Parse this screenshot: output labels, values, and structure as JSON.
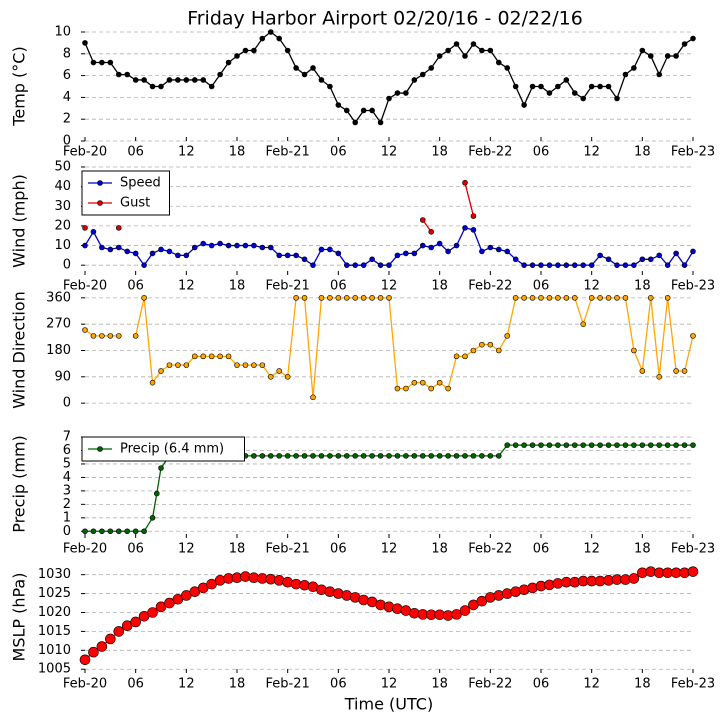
{
  "title": "Friday Harbor Airport 02/20/16 - 02/22/16",
  "chart_data": [
    {
      "type": "line",
      "ylabel": "Temp (°C)",
      "xlim": [
        0,
        72
      ],
      "ylim": [
        0,
        10
      ],
      "yticks": [
        0,
        2,
        4,
        6,
        8,
        10
      ],
      "xticks": [
        {
          "value": 0,
          "label": "Feb-20"
        },
        {
          "value": 6,
          "label": "06"
        },
        {
          "value": 12,
          "label": "12"
        },
        {
          "value": 18,
          "label": "18"
        },
        {
          "value": 24,
          "label": "Feb-21"
        },
        {
          "value": 30,
          "label": "06"
        },
        {
          "value": 36,
          "label": "12"
        },
        {
          "value": 42,
          "label": "18"
        },
        {
          "value": 48,
          "label": "Feb-22"
        },
        {
          "value": 54,
          "label": "06"
        },
        {
          "value": 60,
          "label": "12"
        },
        {
          "value": 66,
          "label": "18"
        },
        {
          "value": 72,
          "label": "Feb-23"
        }
      ],
      "grid": true,
      "x": [
        0,
        1,
        2,
        3,
        4,
        5,
        6,
        7,
        8,
        9,
        10,
        11,
        12,
        13,
        14,
        15,
        16,
        17,
        18,
        19,
        20,
        21,
        22,
        23,
        24,
        25,
        26,
        27,
        28,
        29,
        30,
        31,
        32,
        33,
        34,
        35,
        36,
        37,
        38,
        39,
        40,
        41,
        42,
        43,
        44,
        45,
        46,
        47,
        48,
        49,
        50,
        51,
        52,
        53,
        54,
        55,
        56,
        57,
        58,
        59,
        60,
        61,
        62,
        63,
        64,
        65,
        66,
        67,
        68,
        69,
        70,
        71,
        72
      ],
      "series": [
        {
          "name": "Temp",
          "color": "#000000",
          "values": [
            9,
            7.2,
            7.2,
            7.2,
            6.1,
            6.1,
            5.6,
            5.6,
            5,
            5,
            5.6,
            5.6,
            5.6,
            5.6,
            5.6,
            5,
            6.1,
            7.2,
            7.8,
            8.3,
            8.3,
            9.4,
            10,
            9.4,
            8.3,
            6.7,
            6.1,
            6.7,
            5.6,
            5,
            3.3,
            2.8,
            1.7,
            2.8,
            2.8,
            1.7,
            3.9,
            4.4,
            4.4,
            5.6,
            6.1,
            6.7,
            7.8,
            8.3,
            8.9,
            7.8,
            8.9,
            8.3,
            8.3,
            7.2,
            6.7,
            5,
            3.3,
            5,
            5,
            4.4,
            5,
            5.6,
            4.4,
            3.9,
            5,
            5,
            5,
            3.9,
            6.1,
            6.7,
            8.3,
            7.8,
            6.1,
            7.8,
            7.8,
            8.9,
            9.4
          ]
        }
      ]
    },
    {
      "type": "line",
      "ylabel": "Wind (mph)",
      "xlim": [
        0,
        72
      ],
      "ylim": [
        -5,
        50
      ],
      "yticks": [
        0,
        10,
        20,
        30,
        40,
        50
      ],
      "xticks": [
        {
          "value": 0,
          "label": "Feb-20"
        },
        {
          "value": 6,
          "label": "06"
        },
        {
          "value": 12,
          "label": "12"
        },
        {
          "value": 18,
          "label": "18"
        },
        {
          "value": 24,
          "label": "Feb-21"
        },
        {
          "value": 30,
          "label": "06"
        },
        {
          "value": 36,
          "label": "12"
        },
        {
          "value": 42,
          "label": "18"
        },
        {
          "value": 48,
          "label": "Feb-22"
        },
        {
          "value": 54,
          "label": "06"
        },
        {
          "value": 60,
          "label": "12"
        },
        {
          "value": 66,
          "label": "18"
        },
        {
          "value": 72,
          "label": "Feb-23"
        }
      ],
      "grid": true,
      "legend": "upper left",
      "x": [
        0,
        1,
        2,
        3,
        4,
        5,
        6,
        7,
        8,
        9,
        10,
        11,
        12,
        13,
        14,
        15,
        16,
        17,
        18,
        19,
        20,
        21,
        22,
        23,
        24,
        25,
        26,
        27,
        28,
        29,
        30,
        31,
        32,
        33,
        34,
        35,
        36,
        37,
        38,
        39,
        40,
        41,
        42,
        43,
        44,
        45,
        46,
        47,
        48,
        49,
        50,
        51,
        52,
        53,
        54,
        55,
        56,
        57,
        58,
        59,
        60,
        61,
        62,
        63,
        64,
        65,
        66,
        67,
        68,
        69,
        70,
        71,
        72
      ],
      "series": [
        {
          "name": "Speed",
          "color": "#0000cc",
          "values": [
            10,
            17,
            9,
            8,
            9,
            7,
            6,
            0,
            6,
            8,
            7,
            5,
            5,
            9,
            11,
            10,
            11,
            10,
            10,
            10,
            10,
            9,
            9,
            5,
            5,
            5,
            3,
            0,
            8,
            8,
            6,
            0,
            0,
            0,
            3,
            0,
            0,
            5,
            6,
            6,
            10,
            9,
            11,
            7,
            10,
            19,
            18,
            7,
            9,
            8,
            7,
            3,
            0,
            0,
            0,
            0,
            0,
            0,
            0,
            0,
            0,
            5,
            3,
            0,
            0,
            0,
            3,
            3,
            5,
            0,
            6,
            0,
            7
          ]
        },
        {
          "name": "Gust",
          "color": "#dd0000",
          "values": [
            19,
            null,
            null,
            null,
            19,
            null,
            null,
            null,
            null,
            null,
            null,
            null,
            null,
            null,
            null,
            null,
            null,
            null,
            null,
            null,
            null,
            null,
            null,
            null,
            null,
            null,
            null,
            null,
            null,
            null,
            null,
            null,
            null,
            null,
            null,
            null,
            null,
            null,
            null,
            null,
            23,
            17,
            null,
            null,
            null,
            42,
            25,
            null,
            null,
            null,
            null,
            null,
            null,
            null,
            null,
            null,
            null,
            null,
            null,
            null,
            null,
            null,
            null,
            null,
            null,
            null,
            null,
            null,
            null,
            null,
            null,
            null,
            null
          ]
        }
      ]
    },
    {
      "type": "line",
      "ylabel": "Wind Direction",
      "xlim": [
        0,
        72
      ],
      "ylim": [
        -20,
        380
      ],
      "yticks": [
        0,
        90,
        180,
        270,
        360
      ],
      "grid": true,
      "x": [
        0,
        1,
        2,
        3,
        4,
        5,
        6,
        7,
        8,
        9,
        10,
        11,
        12,
        13,
        14,
        15,
        16,
        17,
        18,
        19,
        20,
        21,
        22,
        23,
        24,
        25,
        26,
        27,
        28,
        29,
        30,
        31,
        32,
        33,
        34,
        35,
        36,
        37,
        38,
        39,
        40,
        41,
        42,
        43,
        44,
        45,
        46,
        47,
        48,
        49,
        50,
        51,
        52,
        53,
        54,
        55,
        56,
        57,
        58,
        59,
        60,
        61,
        62,
        63,
        64,
        65,
        66,
        67,
        68,
        69,
        70,
        71,
        72
      ],
      "series": [
        {
          "name": "Direction",
          "color": "#ffa500",
          "values": [
            250,
            230,
            230,
            230,
            230,
            null,
            230,
            360,
            70,
            110,
            130,
            130,
            130,
            160,
            160,
            160,
            160,
            160,
            130,
            130,
            130,
            130,
            90,
            110,
            90,
            360,
            360,
            20,
            360,
            360,
            360,
            360,
            360,
            360,
            360,
            360,
            360,
            50,
            50,
            70,
            70,
            50,
            70,
            50,
            160,
            160,
            180,
            200,
            200,
            180,
            230,
            360,
            360,
            360,
            360,
            360,
            360,
            360,
            360,
            270,
            360,
            360,
            360,
            360,
            360,
            180,
            110,
            360,
            90,
            360,
            110,
            110,
            230
          ]
        }
      ]
    },
    {
      "type": "line",
      "ylabel": "Precip (mm)",
      "xlim": [
        0,
        72
      ],
      "ylim": [
        -0.5,
        7.3
      ],
      "yticks": [
        0,
        1,
        2,
        3,
        4,
        5,
        6,
        7
      ],
      "xticks": [
        {
          "value": 0,
          "label": "Feb-20"
        },
        {
          "value": 6,
          "label": "06"
        },
        {
          "value": 12,
          "label": "12"
        },
        {
          "value": 18,
          "label": "18"
        },
        {
          "value": 24,
          "label": "Feb-21"
        },
        {
          "value": 30,
          "label": "06"
        },
        {
          "value": 36,
          "label": "12"
        },
        {
          "value": 42,
          "label": "18"
        },
        {
          "value": 48,
          "label": "Feb-22"
        },
        {
          "value": 54,
          "label": "06"
        },
        {
          "value": 60,
          "label": "12"
        },
        {
          "value": 66,
          "label": "18"
        },
        {
          "value": 72,
          "label": "Feb-23"
        }
      ],
      "grid": true,
      "legend": "upper left",
      "x": [
        0,
        1,
        2,
        3,
        4,
        5,
        6,
        7,
        8,
        8.5,
        9,
        10,
        11,
        12,
        13,
        14,
        15,
        16,
        17,
        18,
        19,
        20,
        21,
        22,
        23,
        24,
        25,
        26,
        27,
        28,
        29,
        30,
        31,
        32,
        33,
        34,
        35,
        36,
        37,
        38,
        39,
        40,
        41,
        42,
        43,
        44,
        45,
        46,
        47,
        48,
        49,
        50,
        51,
        52,
        53,
        54,
        55,
        56,
        57,
        58,
        59,
        60,
        61,
        62,
        63,
        64,
        65,
        66,
        67,
        68,
        69,
        70,
        71,
        72
      ],
      "series": [
        {
          "name": "Precip (6.4 mm)",
          "color": "#006400",
          "values": [
            0,
            0,
            0,
            0,
            0,
            0,
            0,
            0,
            1,
            2.8,
            4.7,
            5.6,
            5.6,
            5.6,
            5.6,
            5.6,
            5.6,
            5.6,
            5.6,
            5.6,
            5.6,
            5.6,
            5.6,
            5.6,
            5.6,
            5.6,
            5.6,
            5.6,
            5.6,
            5.6,
            5.6,
            5.6,
            5.6,
            5.6,
            5.6,
            5.6,
            5.6,
            5.6,
            5.6,
            5.6,
            5.6,
            5.6,
            5.6,
            5.6,
            5.6,
            5.6,
            5.6,
            5.6,
            5.6,
            5.6,
            5.6,
            6.4,
            6.4,
            6.4,
            6.4,
            6.4,
            6.4,
            6.4,
            6.4,
            6.4,
            6.4,
            6.4,
            6.4,
            6.4,
            6.4,
            6.4,
            6.4,
            6.4,
            6.4,
            6.4,
            6.4,
            6.4,
            6.4,
            6.4
          ]
        }
      ]
    },
    {
      "type": "line",
      "ylabel": "MSLP (hPa)",
      "xlabel": "Time (UTC)",
      "xlim": [
        0,
        72
      ],
      "ylim": [
        1004,
        1031.5
      ],
      "yticks": [
        1005,
        1010,
        1015,
        1020,
        1025,
        1030
      ],
      "xticks": [
        {
          "value": 0,
          "label": "Feb-20"
        },
        {
          "value": 6,
          "label": "06"
        },
        {
          "value": 12,
          "label": "12"
        },
        {
          "value": 18,
          "label": "18"
        },
        {
          "value": 24,
          "label": "Feb-21"
        },
        {
          "value": 30,
          "label": "06"
        },
        {
          "value": 36,
          "label": "12"
        },
        {
          "value": 42,
          "label": "18"
        },
        {
          "value": 48,
          "label": "Feb-22"
        },
        {
          "value": 54,
          "label": "06"
        },
        {
          "value": 60,
          "label": "12"
        },
        {
          "value": 66,
          "label": "18"
        },
        {
          "value": 72,
          "label": "Feb-23"
        }
      ],
      "grid": true,
      "x": [
        0,
        1,
        2,
        3,
        4,
        5,
        6,
        7,
        8,
        9,
        10,
        11,
        12,
        13,
        14,
        15,
        16,
        17,
        18,
        19,
        20,
        21,
        22,
        23,
        24,
        25,
        26,
        27,
        28,
        29,
        30,
        31,
        32,
        33,
        34,
        35,
        36,
        37,
        38,
        39,
        40,
        41,
        42,
        43,
        44,
        45,
        46,
        47,
        48,
        49,
        50,
        51,
        52,
        53,
        54,
        55,
        56,
        57,
        58,
        59,
        60,
        61,
        62,
        63,
        64,
        65,
        66,
        67,
        68,
        69,
        70,
        71,
        72
      ],
      "series": [
        {
          "name": "MSLP",
          "color": "#ff0000",
          "values": [
            1007.5,
            1009.5,
            1011,
            1013,
            1015,
            1016.5,
            1017.5,
            1019,
            1020,
            1021.5,
            1022.5,
            1023.5,
            1024.5,
            1025.5,
            1026.5,
            1027.5,
            1028.5,
            1029,
            1029.2,
            1029.5,
            1029.2,
            1029,
            1028.8,
            1028.5,
            1028,
            1027.5,
            1027.2,
            1026.8,
            1026,
            1025.5,
            1025,
            1024.5,
            1024,
            1023.3,
            1022.8,
            1022,
            1021.5,
            1021,
            1020.5,
            1019.8,
            1019.5,
            1019.4,
            1019.4,
            1019.2,
            1019.5,
            1020.5,
            1022,
            1023,
            1024,
            1024.5,
            1025,
            1025.5,
            1026,
            1026.5,
            1027,
            1027.3,
            1027.7,
            1028,
            1028,
            1028.3,
            1028.3,
            1028.3,
            1028.5,
            1028.7,
            1028.7,
            1029,
            1030.5,
            1030.8,
            1030.5,
            1030.5,
            1030.5,
            1030.5,
            1030.8
          ]
        }
      ]
    }
  ]
}
